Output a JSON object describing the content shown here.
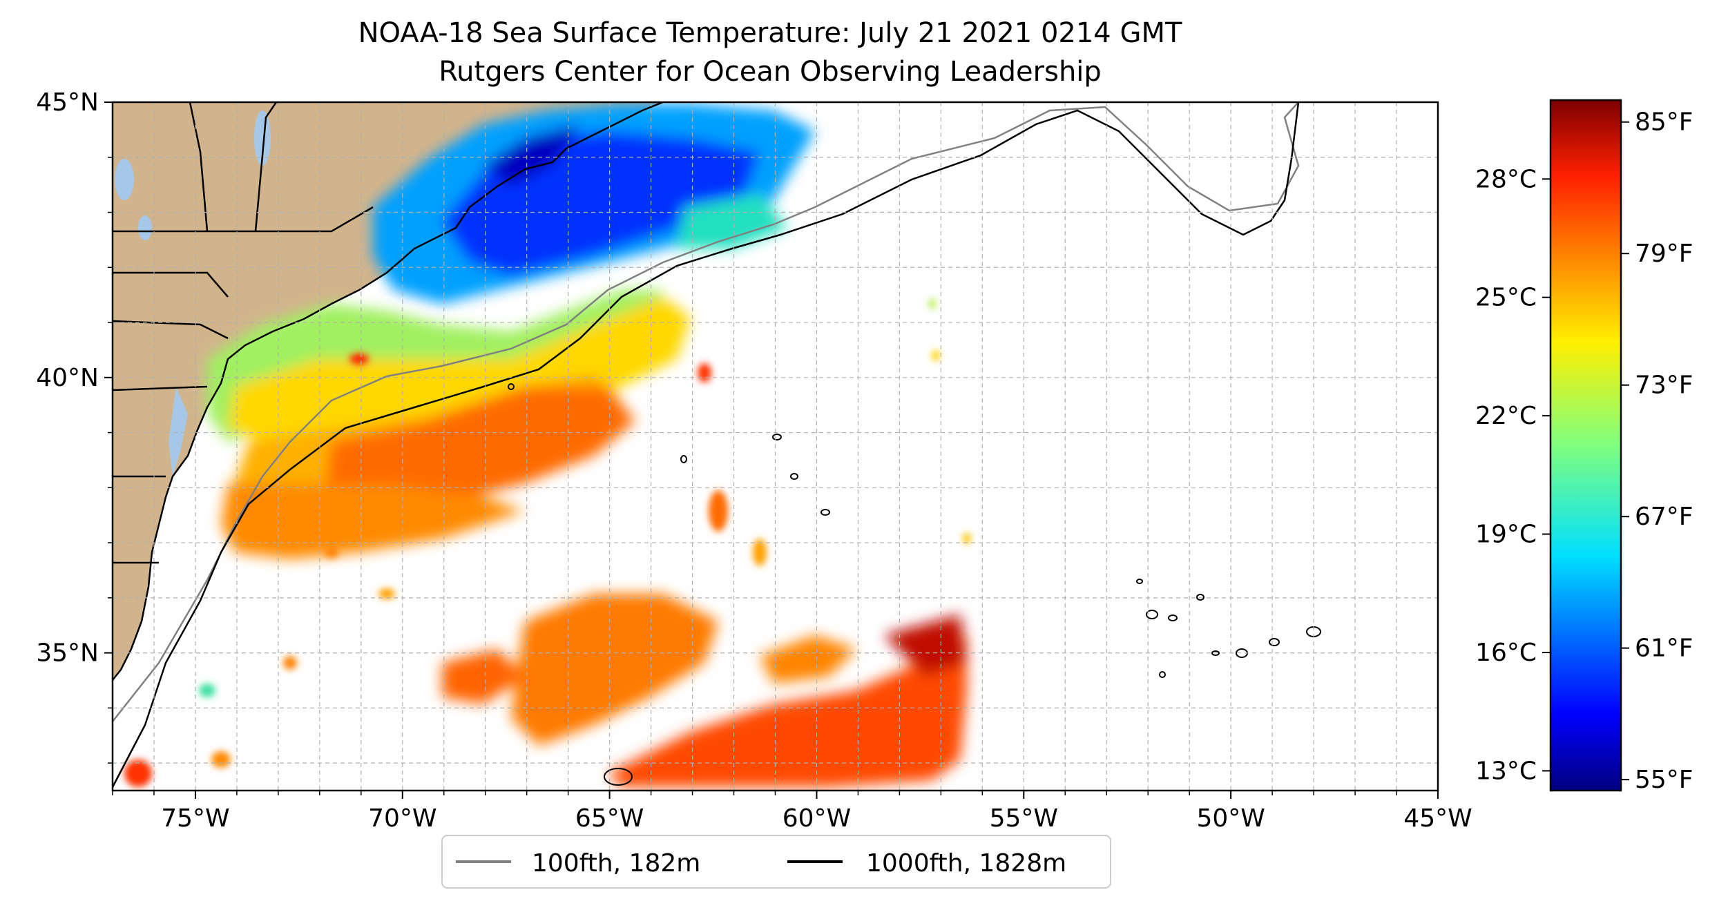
{
  "title": {
    "line1": "NOAA-18 Sea Surface Temperature: July 21 2021 0214 GMT",
    "line2": "Rutgers Center for Ocean Observing Leadership"
  },
  "map": {
    "extent_lon": [
      -77,
      -45
    ],
    "extent_lat": [
      32.5,
      45
    ],
    "lon_ticks": [
      {
        "value": -75,
        "label": "75°W"
      },
      {
        "value": -70,
        "label": "70°W"
      },
      {
        "value": -65,
        "label": "65°W"
      },
      {
        "value": -60,
        "label": "60°W"
      },
      {
        "value": -55,
        "label": "55°W"
      },
      {
        "value": -50,
        "label": "50°W"
      },
      {
        "value": -45,
        "label": "45°W"
      }
    ],
    "lat_ticks": [
      {
        "value": 45,
        "label": "45°N"
      },
      {
        "value": 40,
        "label": "40°N"
      },
      {
        "value": 35,
        "label": "35°N"
      }
    ],
    "grid": true,
    "land_color": "#d2b48c",
    "water_color": "#a6c8e8"
  },
  "colorbar": {
    "colormap": "jet",
    "range_c": [
      12.5,
      30
    ],
    "celsius_ticks": [
      {
        "value": 13,
        "label": "13°C"
      },
      {
        "value": 16,
        "label": "16°C"
      },
      {
        "value": 19,
        "label": "19°C"
      },
      {
        "value": 22,
        "label": "22°C"
      },
      {
        "value": 25,
        "label": "25°C"
      },
      {
        "value": 28,
        "label": "28°C"
      }
    ],
    "fahrenheit_ticks": [
      {
        "value": 55,
        "label": "55°F"
      },
      {
        "value": 61,
        "label": "61°F"
      },
      {
        "value": 67,
        "label": "67°F"
      },
      {
        "value": 73,
        "label": "73°F"
      },
      {
        "value": 79,
        "label": "79°F"
      },
      {
        "value": 85,
        "label": "85°F"
      }
    ]
  },
  "legend": {
    "entries": [
      {
        "label": "100fth, 182m",
        "color": "#808080"
      },
      {
        "label": "1000fth, 1828m",
        "color": "#000000"
      }
    ],
    "placement": "bottom-center"
  }
}
